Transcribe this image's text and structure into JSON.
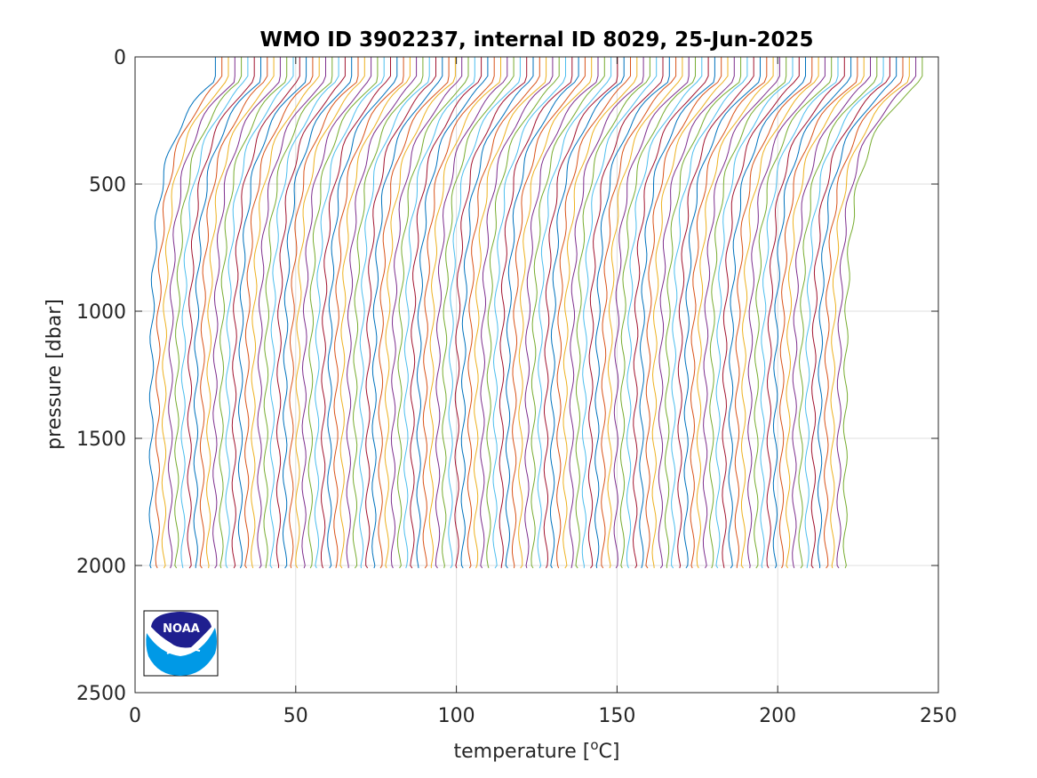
{
  "chart_data": {
    "type": "line",
    "title": "WMO ID 3902237, internal ID 8029, 25-Jun-2025",
    "xlabel": "temperature [",
    "xlabel_sup": "o",
    "xlabel_end": "C]",
    "ylabel": "pressure [dbar]",
    "xlim": [
      0,
      250
    ],
    "ylim": [
      0,
      2500
    ],
    "y_reversed": true,
    "grid": true,
    "xticks": [
      0,
      50,
      100,
      150,
      200,
      250
    ],
    "yticks": [
      0,
      500,
      1000,
      1500,
      2000,
      2500
    ],
    "offset_profiles": {
      "count": 110,
      "deep_temperature_first": 5,
      "deep_temperature_last": 221,
      "surface_temperature_first": 25,
      "surface_temperature_last": 245,
      "max_pressure": 2010
    },
    "series_colors": [
      "#0072bd",
      "#d95319",
      "#edb120",
      "#7e2f8e",
      "#77ac30",
      "#4dbeee",
      "#a2142f"
    ]
  },
  "logo": {
    "text": "NOAA"
  }
}
